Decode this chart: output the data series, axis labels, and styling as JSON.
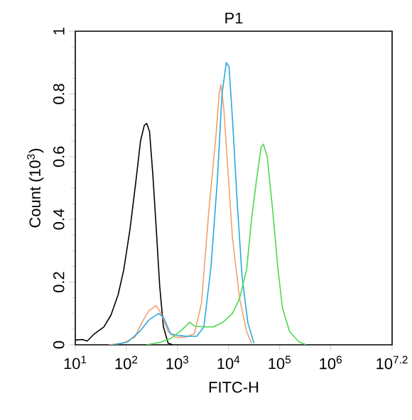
{
  "chart_data": {
    "type": "line",
    "title": "P1",
    "xlabel": "FITC-H",
    "ylabel": "Count (10$^{3}$)",
    "log": "x",
    "xlim": [
      10,
      15848932
    ],
    "ylim": [
      0,
      1
    ],
    "xticks": [
      {
        "value": 10,
        "label": "10$^{1}$"
      },
      {
        "value": 100,
        "label": "10$^{2}$"
      },
      {
        "value": 1000,
        "label": "10$^{3}$"
      },
      {
        "value": 10000,
        "label": "10$^{4}$"
      },
      {
        "value": 100000,
        "label": "10$^{5}$"
      },
      {
        "value": 1000000,
        "label": "10$^{6}$"
      },
      {
        "value": 15848932,
        "label": "10$^{7.2}$"
      }
    ],
    "yticks": [
      0,
      0.2,
      0.4,
      0.6,
      0.8,
      1
    ],
    "series": [
      {
        "color": "#000000",
        "x": [
          10,
          13.8,
          17.1,
          23.6,
          36.2,
          50,
          69,
          89,
          118,
          153,
          189,
          224,
          250,
          284,
          330,
          384,
          447,
          530,
          656,
          813
        ],
        "values": [
          0.015,
          0.017,
          0.012,
          0.035,
          0.057,
          0.095,
          0.16,
          0.24,
          0.37,
          0.52,
          0.65,
          0.7,
          0.706,
          0.68,
          0.54,
          0.37,
          0.19,
          0.057,
          0.005,
          0
        ]
      },
      {
        "color": "#f0a070",
        "x": [
          44.9,
          85.5,
          146,
          202,
          279,
          385,
          477,
          656,
          906,
          1390,
          2140,
          2950,
          4070,
          5610,
          6530,
          7110,
          8090,
          9590,
          11900,
          16400,
          22600,
          28100
        ],
        "values": [
          0,
          0.005,
          0.024,
          0.072,
          0.11,
          0.125,
          0.1,
          0.042,
          0.024,
          0.024,
          0.035,
          0.133,
          0.42,
          0.66,
          0.8,
          0.83,
          0.75,
          0.57,
          0.34,
          0.148,
          0.042,
          0.005
        ]
      },
      {
        "color": "#29a8e0",
        "x": [
          55.7,
          106,
          181,
          279,
          428,
          530,
          731,
          1010,
          1550,
          2380,
          3280,
          4530,
          6000,
          7430,
          9020,
          10200,
          11900,
          14800,
          18300,
          23700,
          31300
        ],
        "values": [
          0,
          0.009,
          0.042,
          0.08,
          0.1,
          0.088,
          0.035,
          0.03,
          0.027,
          0.027,
          0.057,
          0.25,
          0.52,
          0.8,
          0.9,
          0.887,
          0.72,
          0.45,
          0.22,
          0.072,
          0.005
        ]
      },
      {
        "color": "#4cd94c",
        "x": [
          250,
          477,
          731,
          1120,
          1730,
          2140,
          3280,
          5050,
          7750,
          11900,
          16400,
          22600,
          28100,
          34800,
          43200,
          48000,
          57000,
          73800,
          91400,
          113000,
          156000,
          240000,
          331000
        ],
        "values": [
          0,
          0.009,
          0.02,
          0.042,
          0.072,
          0.06,
          0.057,
          0.057,
          0.072,
          0.1,
          0.148,
          0.24,
          0.4,
          0.52,
          0.63,
          0.64,
          0.6,
          0.42,
          0.25,
          0.118,
          0.042,
          0.009,
          0
        ]
      }
    ]
  }
}
